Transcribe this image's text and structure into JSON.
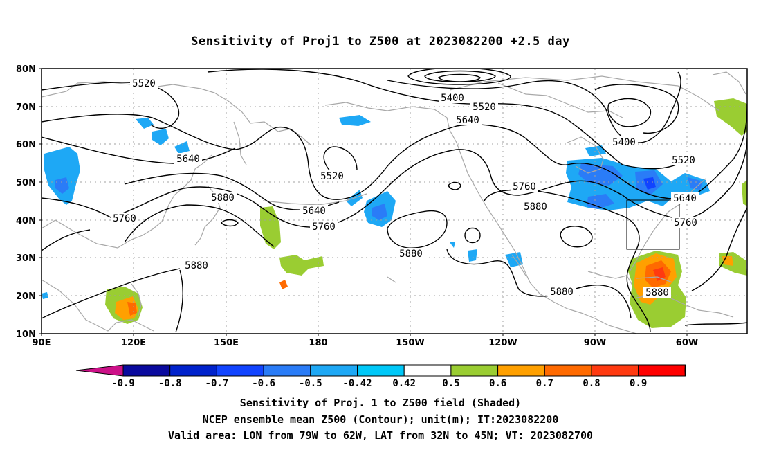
{
  "title": "Sensitivity of Proj1 to Z500 at 2023082200 +2.5 day",
  "lat_labels": [
    "80N",
    "70N",
    "60N",
    "50N",
    "40N",
    "30N",
    "20N",
    "10N"
  ],
  "lon_labels": [
    "90E",
    "120E",
    "150E",
    "180",
    "150W",
    "120W",
    "90W",
    "60W"
  ],
  "contour_labels": [
    "5520",
    "5400",
    "5520",
    "5640",
    "5400",
    "5520",
    "5640",
    "5520",
    "5760",
    "5880",
    "5640",
    "5760",
    "5880",
    "5760",
    "5640",
    "5760",
    "5880",
    "5880",
    "5880",
    "5880"
  ],
  "colorbar": {
    "labels": [
      "-0.9",
      "-0.8",
      "-0.7",
      "-0.6",
      "-0.5",
      "-0.42",
      "0.42",
      "0.5",
      "0.6",
      "0.7",
      "0.8",
      "0.9"
    ],
    "colors": [
      "#cc1188",
      "#0a0a9e",
      "#0022cc",
      "#1144ff",
      "#2a7cf7",
      "#1ea8f5",
      "#00c8f8",
      "#ffffff",
      "#9acd32",
      "#ffa000",
      "#ff6a00",
      "#ff3a10",
      "#ff0000",
      "#f5a3c8"
    ]
  },
  "sensitivity_colors": {
    "cyan": "#00c8f8",
    "lightblue": "#1ea8f5",
    "blue": "#2a7cf7",
    "darkblue": "#1144ff",
    "green": "#9acd32",
    "orange": "#ffa000",
    "darkorange": "#ff6a00",
    "red": "#ff3a10"
  },
  "footer": {
    "line1": "Sensitivity of Proj. 1 to Z500 field (Shaded)",
    "line2": "NCEP ensemble mean Z500 (Contour); unit(m); IT:2023082200",
    "line3": "Valid area: LON from 79W to 62W, LAT from 32N to 45N; VT: 2023082700"
  }
}
